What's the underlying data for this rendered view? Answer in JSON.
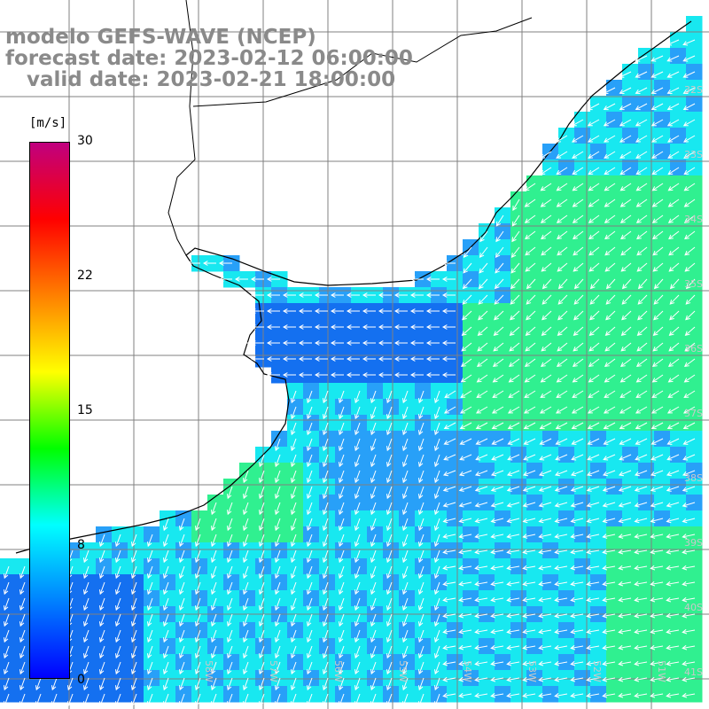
{
  "title": {
    "model": "modelo GEFS-WAVE (NCEP)",
    "forecast": "forecast date: 2023-02-12 06:00:00",
    "valid": "   valid date: 2023-02-21 18:00:00"
  },
  "colorbar": {
    "unit": "[m/s]",
    "min": 0,
    "max": 30,
    "ticks": [
      "30",
      "22",
      "15",
      "8",
      "0"
    ],
    "tick_values": [
      30,
      22,
      15,
      8,
      0
    ],
    "colors": [
      "#0000ff",
      "#0080ff",
      "#00ffff",
      "#00ff00",
      "#ffff00",
      "#ff8000",
      "#ff0000",
      "#c0007f"
    ]
  },
  "map": {
    "lat_labels": [
      "32S",
      "33S",
      "34S",
      "35S",
      "36S",
      "37S",
      "38S",
      "39S",
      "40S",
      "41S"
    ],
    "lon_labels": [
      "58W",
      "57W",
      "56W",
      "55W",
      "54W",
      "53W",
      "52W",
      "51W"
    ],
    "ocean_colors": {
      "deep_blue": "#1470f0",
      "blue": "#28a0f8",
      "cyan": "#18e8f0",
      "green": "#30f090"
    },
    "arrow_color": "#ffffff"
  }
}
